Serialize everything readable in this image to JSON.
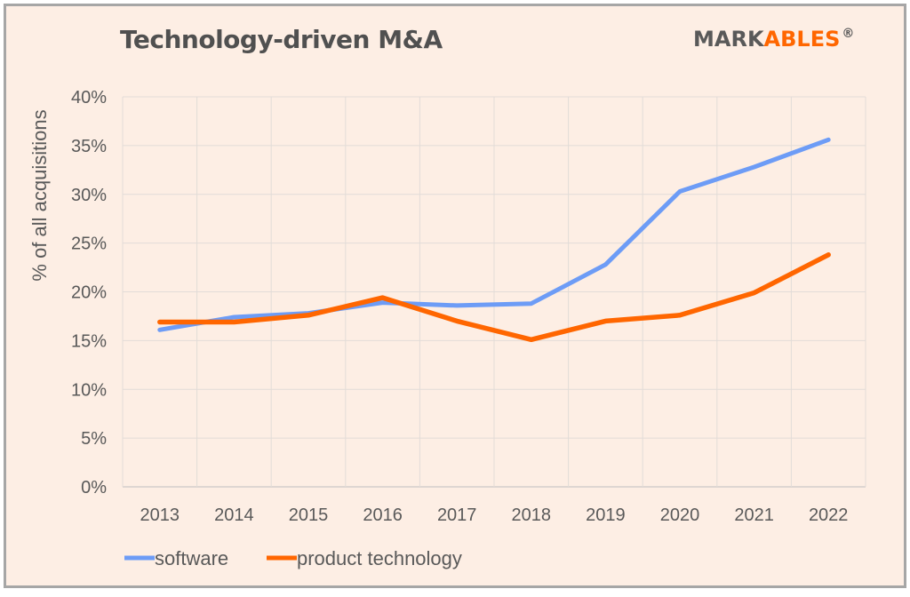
{
  "chart_data": {
    "type": "line",
    "title": "Technology-driven M&A",
    "ylabel": "% of all acquisitions",
    "xlabel": "",
    "categories": [
      "2013",
      "2014",
      "2015",
      "2016",
      "2017",
      "2018",
      "2019",
      "2020",
      "2021",
      "2022"
    ],
    "yticks": [
      "0%",
      "5%",
      "10%",
      "15%",
      "20%",
      "25%",
      "30%",
      "35%",
      "40%"
    ],
    "ylim": [
      0,
      40
    ],
    "grid": true,
    "legend": "bottom-left",
    "series": [
      {
        "name": "software",
        "color": "#6d9cf6",
        "values": [
          16.1,
          17.4,
          17.8,
          18.9,
          18.6,
          18.8,
          22.8,
          30.3,
          32.8,
          35.6
        ]
      },
      {
        "name": "product technology",
        "color": "#ff6600",
        "values": [
          16.9,
          16.9,
          17.6,
          19.4,
          17.0,
          15.1,
          17.0,
          17.6,
          19.9,
          23.8
        ]
      }
    ]
  },
  "logo": {
    "part1": "MARK",
    "part2": "ABLES",
    "reg": "®"
  }
}
